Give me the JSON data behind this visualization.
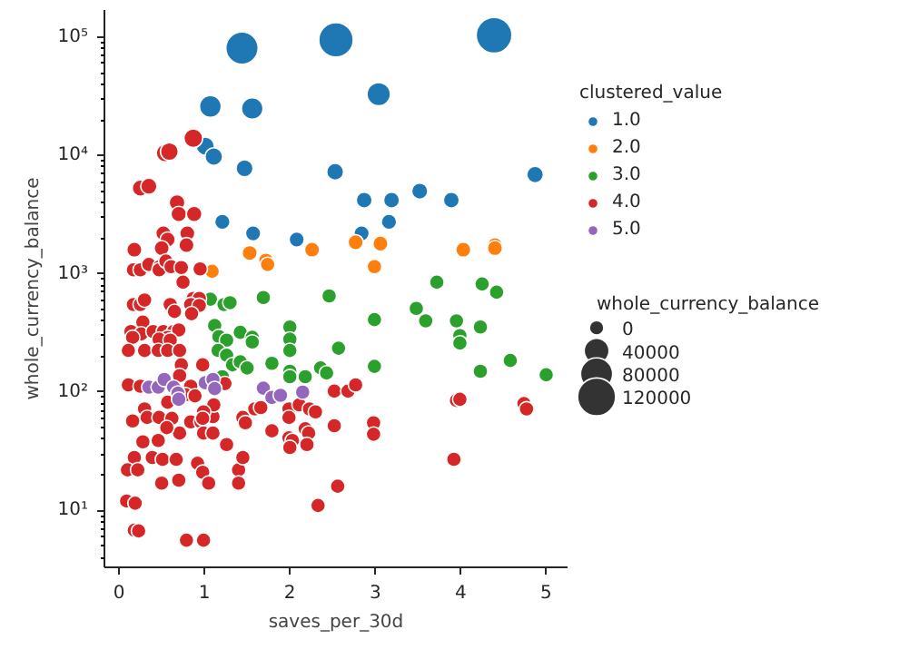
{
  "chart_data": {
    "type": "bubble",
    "xlabel": "saves_per_30d",
    "ylabel": "whole_currency_balance",
    "legend_title": "clustered_value",
    "annotations": [
      "whole_currency_balance"
    ],
    "log": "y",
    "grid": false,
    "legend": "right",
    "marker": "circle",
    "xlim": [
      -0.17,
      5.25
    ],
    "xticks": [
      0,
      1,
      2,
      3,
      4,
      5
    ],
    "ylim": [
      3.3,
      170000
    ],
    "yticks": [
      {
        "value": 10,
        "label": "10¹"
      },
      {
        "value": 100,
        "label": "10²"
      },
      {
        "value": 1000,
        "label": "10³"
      },
      {
        "value": 10000,
        "label": "10⁴"
      },
      {
        "value": 100000,
        "label": "10⁵"
      }
    ],
    "size_legend": [
      {
        "value": 0.164,
        "label": "0"
      },
      {
        "value": 0.485,
        "label": "40000"
      },
      {
        "value": 0.807,
        "label": "80000"
      },
      {
        "value": 1.128,
        "label": "120000"
      }
    ],
    "series": [
      {
        "name": "1.0",
        "color": "#1f77b4",
        "x": [
          1.44,
          2.54,
          4.39,
          1.07,
          1.56,
          3.04,
          1.01,
          1.11,
          1.47,
          2.53,
          4.87,
          2.87,
          3.19,
          3.52,
          3.89,
          1.21,
          3.16,
          1.57,
          2.08,
          2.84
        ],
        "values": [
          81000,
          95000,
          104000,
          26000,
          25000,
          33000,
          12000,
          9800,
          7800,
          7300,
          6900,
          4200,
          4200,
          5000,
          4200,
          2750,
          2750,
          2200,
          1950,
          2200
        ],
        "sizes": [
          0.815,
          0.927,
          1.0,
          0.373,
          0.365,
          0.429,
          0.26,
          0.243,
          0.227,
          0.223,
          0.219,
          0.198,
          0.198,
          0.204,
          0.198,
          0.186,
          0.186,
          0.182,
          0.18,
          0.182
        ]
      },
      {
        "name": "2.0",
        "color": "#ff7f0e",
        "x": [
          1.09,
          1.53,
          1.72,
          1.74,
          2.26,
          2.77,
          3.06,
          2.99,
          4.03,
          4.4,
          4.4
        ],
        "values": [
          1050,
          1500,
          1300,
          1200,
          1600,
          1850,
          1800,
          1150,
          1600,
          1750,
          1650
        ],
        "sizes": [
          0.17,
          0.18,
          0.17,
          0.17,
          0.18,
          0.18,
          0.18,
          0.17,
          0.18,
          0.18,
          0.18
        ]
      },
      {
        "name": "3.0",
        "color": "#2ca02c",
        "x": [
          1.07,
          1.23,
          1.3,
          1.69,
          2.46,
          3.72,
          4.25,
          4.42,
          3.48,
          2.99,
          3.59,
          3.95,
          3.99,
          3.99,
          4.23,
          4.23,
          4.58,
          5.0,
          1.12,
          1.17,
          1.26,
          1.16,
          1.26,
          1.33,
          1.42,
          1.42,
          1.5,
          1.56,
          1.56,
          2.0,
          2.0,
          2.0,
          2.0,
          2.0,
          2.18,
          2.36,
          2.43,
          2.57,
          2.99,
          1.79,
          1.21
        ],
        "values": [
          610,
          550,
          570,
          630,
          650,
          850,
          820,
          700,
          510,
          410,
          400,
          400,
          300,
          260,
          355,
          150,
          185,
          140,
          365,
          295,
          275,
          225,
          205,
          170,
          320,
          180,
          160,
          290,
          265,
          355,
          280,
          225,
          150,
          135,
          135,
          160,
          145,
          235,
          165,
          175,
          135
        ],
        "sizes": [
          0.17,
          0.17,
          0.17,
          0.17,
          0.17,
          0.17,
          0.17,
          0.17,
          0.17,
          0.17,
          0.17,
          0.17,
          0.17,
          0.17,
          0.17,
          0.17,
          0.17,
          0.17,
          0.17,
          0.17,
          0.17,
          0.17,
          0.17,
          0.17,
          0.17,
          0.17,
          0.17,
          0.17,
          0.17,
          0.17,
          0.17,
          0.17,
          0.17,
          0.17,
          0.17,
          0.17,
          0.17,
          0.17,
          0.17,
          0.17,
          0.17
        ]
      },
      {
        "name": "4.0",
        "color": "#d62728",
        "x": [
          0.87,
          0.54,
          0.59,
          0.25,
          0.35,
          0.68,
          0.7,
          0.88,
          0.8,
          0.52,
          0.57,
          0.79,
          0.18,
          0.5,
          0.17,
          0.25,
          0.35,
          0.48,
          0.47,
          0.55,
          0.61,
          0.73,
          0.95,
          0.75,
          0.17,
          0.25,
          0.3,
          0.6,
          0.87,
          0.94,
          0.84,
          0.94,
          0.65,
          0.85,
          0.28,
          0.14,
          0.26,
          0.16,
          0.4,
          0.52,
          0.64,
          0.57,
          0.7,
          0.47,
          0.6,
          0.11,
          0.3,
          0.46,
          0.57,
          0.71,
          0.73,
          0.71,
          0.98,
          1.24,
          0.11,
          0.25,
          0.84,
          0.78,
          0.89,
          0.57,
          0.3,
          0.16,
          0.33,
          0.47,
          0.62,
          0.84,
          0.96,
          1.1,
          1.11,
          0.99,
          0.98,
          0.99,
          1.1,
          0.71,
          0.56,
          0.46,
          0.28,
          0.18,
          0.1,
          0.22,
          0.39,
          0.51,
          0.67,
          0.92,
          0.98,
          0.5,
          0.7,
          1.05,
          0.09,
          0.19,
          0.18,
          0.23,
          0.79,
          0.99,
          1.26,
          1.45,
          1.4,
          1.45,
          1.4,
          1.48,
          1.59,
          1.66,
          1.79,
          1.99,
          1.99,
          1.99,
          2.03,
          2.0,
          2.11,
          2.23,
          2.3,
          2.18,
          2.22,
          2.2,
          2.52,
          2.68,
          2.77,
          2.52,
          2.56,
          2.33,
          2.98,
          2.98,
          3.95,
          3.99,
          3.92,
          4.74,
          4.77
        ],
        "values": [
          14000,
          10500,
          10800,
          5300,
          5500,
          4000,
          3200,
          3200,
          2200,
          2200,
          1950,
          1750,
          1600,
          1650,
          1080,
          1080,
          1200,
          1150,
          1080,
          1280,
          1150,
          1130,
          1100,
          850,
          550,
          550,
          600,
          550,
          620,
          620,
          550,
          540,
          480,
          460,
          390,
          325,
          310,
          290,
          325,
          325,
          325,
          290,
          335,
          280,
          275,
          225,
          225,
          225,
          225,
          225,
          170,
          138,
          170,
          118,
          115,
          112,
          112,
          95,
          93,
          82,
          72,
          57,
          61,
          61,
          60,
          56,
          56,
          62,
          78,
          68,
          60,
          45,
          45,
          45,
          50,
          39,
          38,
          28,
          22,
          22,
          28,
          27,
          27,
          25,
          21,
          17,
          18,
          17,
          12,
          11.5,
          6.8,
          6.7,
          5.6,
          5.6,
          36,
          61,
          22,
          28,
          17,
          55,
          72,
          74,
          47,
          72,
          61,
          41,
          39,
          34,
          78,
          72,
          68,
          49,
          45,
          36,
          102,
          102,
          115,
          52,
          16,
          11,
          55,
          44,
          85,
          87,
          27,
          80,
          72
        ],
        "sizes": [
          0.276,
          0.248,
          0.251,
          0.207,
          0.208,
          0.196,
          0.19,
          0.19,
          0.18,
          0.18,
          0.18,
          0.18,
          0.18,
          0.18,
          0.17,
          0.17,
          0.17,
          0.17,
          0.17,
          0.17,
          0.17,
          0.17,
          0.17,
          0.17,
          0.17,
          0.17,
          0.17,
          0.17,
          0.17,
          0.17,
          0.17,
          0.17,
          0.17,
          0.17,
          0.17,
          0.17,
          0.17,
          0.17,
          0.17,
          0.17,
          0.17,
          0.17,
          0.17,
          0.17,
          0.17,
          0.17,
          0.17,
          0.17,
          0.17,
          0.17,
          0.17,
          0.17,
          0.17,
          0.17,
          0.17,
          0.17,
          0.17,
          0.17,
          0.17,
          0.17,
          0.17,
          0.17,
          0.17,
          0.17,
          0.17,
          0.17,
          0.17,
          0.17,
          0.17,
          0.17,
          0.17,
          0.17,
          0.17,
          0.17,
          0.17,
          0.17,
          0.17,
          0.17,
          0.17,
          0.17,
          0.17,
          0.17,
          0.17,
          0.17,
          0.17,
          0.17,
          0.17,
          0.17,
          0.17,
          0.17,
          0.17,
          0.17,
          0.17,
          0.17,
          0.17,
          0.17,
          0.17,
          0.17,
          0.17,
          0.17,
          0.17,
          0.17,
          0.17,
          0.17,
          0.17,
          0.17,
          0.17,
          0.17,
          0.17,
          0.17,
          0.17,
          0.17,
          0.17,
          0.17,
          0.17,
          0.17,
          0.17,
          0.17,
          0.17,
          0.17,
          0.17,
          0.17,
          0.17,
          0.17,
          0.17,
          0.17,
          0.17
        ]
      },
      {
        "name": "5.0",
        "color": "#9467bd",
        "x": [
          0.35,
          0.46,
          0.53,
          0.64,
          0.69,
          0.7,
          1.01,
          1.1,
          1.12,
          1.69,
          1.79,
          1.89,
          2.15
        ],
        "values": [
          110,
          110,
          128,
          110,
          98,
          87,
          120,
          128,
          107,
          108,
          90,
          94,
          100
        ],
        "sizes": [
          0.17,
          0.17,
          0.17,
          0.17,
          0.17,
          0.17,
          0.17,
          0.17,
          0.17,
          0.17,
          0.17,
          0.17,
          0.17
        ]
      }
    ]
  }
}
